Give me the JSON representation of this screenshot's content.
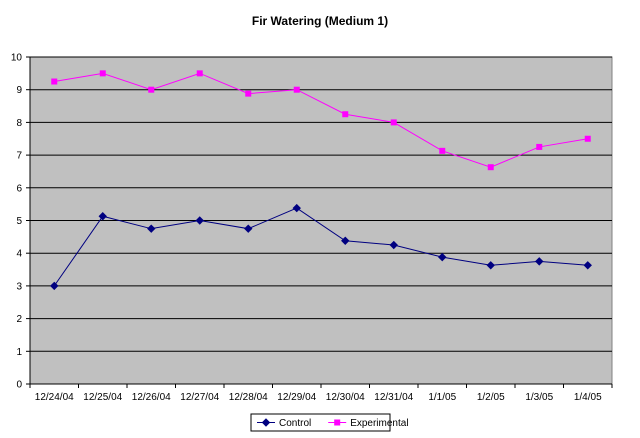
{
  "chart_data": {
    "type": "line",
    "title": "Fir Watering (Medium 1)",
    "xlabel": "",
    "ylabel": "",
    "categories": [
      "12/24/04",
      "12/25/04",
      "12/26/04",
      "12/27/04",
      "12/28/04",
      "12/29/04",
      "12/30/04",
      "12/31/04",
      "1/1/05",
      "1/2/05",
      "1/3/05",
      "1/4/05"
    ],
    "ylim": [
      0,
      10
    ],
    "yticks": [
      0,
      1,
      2,
      3,
      4,
      5,
      6,
      7,
      8,
      9,
      10
    ],
    "grid": true,
    "legend_position": "bottom",
    "plot_background": "#c0c0c0",
    "series": [
      {
        "name": "Control",
        "color": "#000080",
        "marker": "diamond",
        "values": [
          3.0,
          5.13,
          4.75,
          5.0,
          4.75,
          5.38,
          4.38,
          4.25,
          3.88,
          3.63,
          3.75,
          3.63
        ]
      },
      {
        "name": "Experimental",
        "color": "#ff00ff",
        "marker": "square",
        "values": [
          9.25,
          9.5,
          9.0,
          9.5,
          8.88,
          9.0,
          8.25,
          8.0,
          7.13,
          6.63,
          7.25,
          7.5
        ]
      }
    ]
  }
}
